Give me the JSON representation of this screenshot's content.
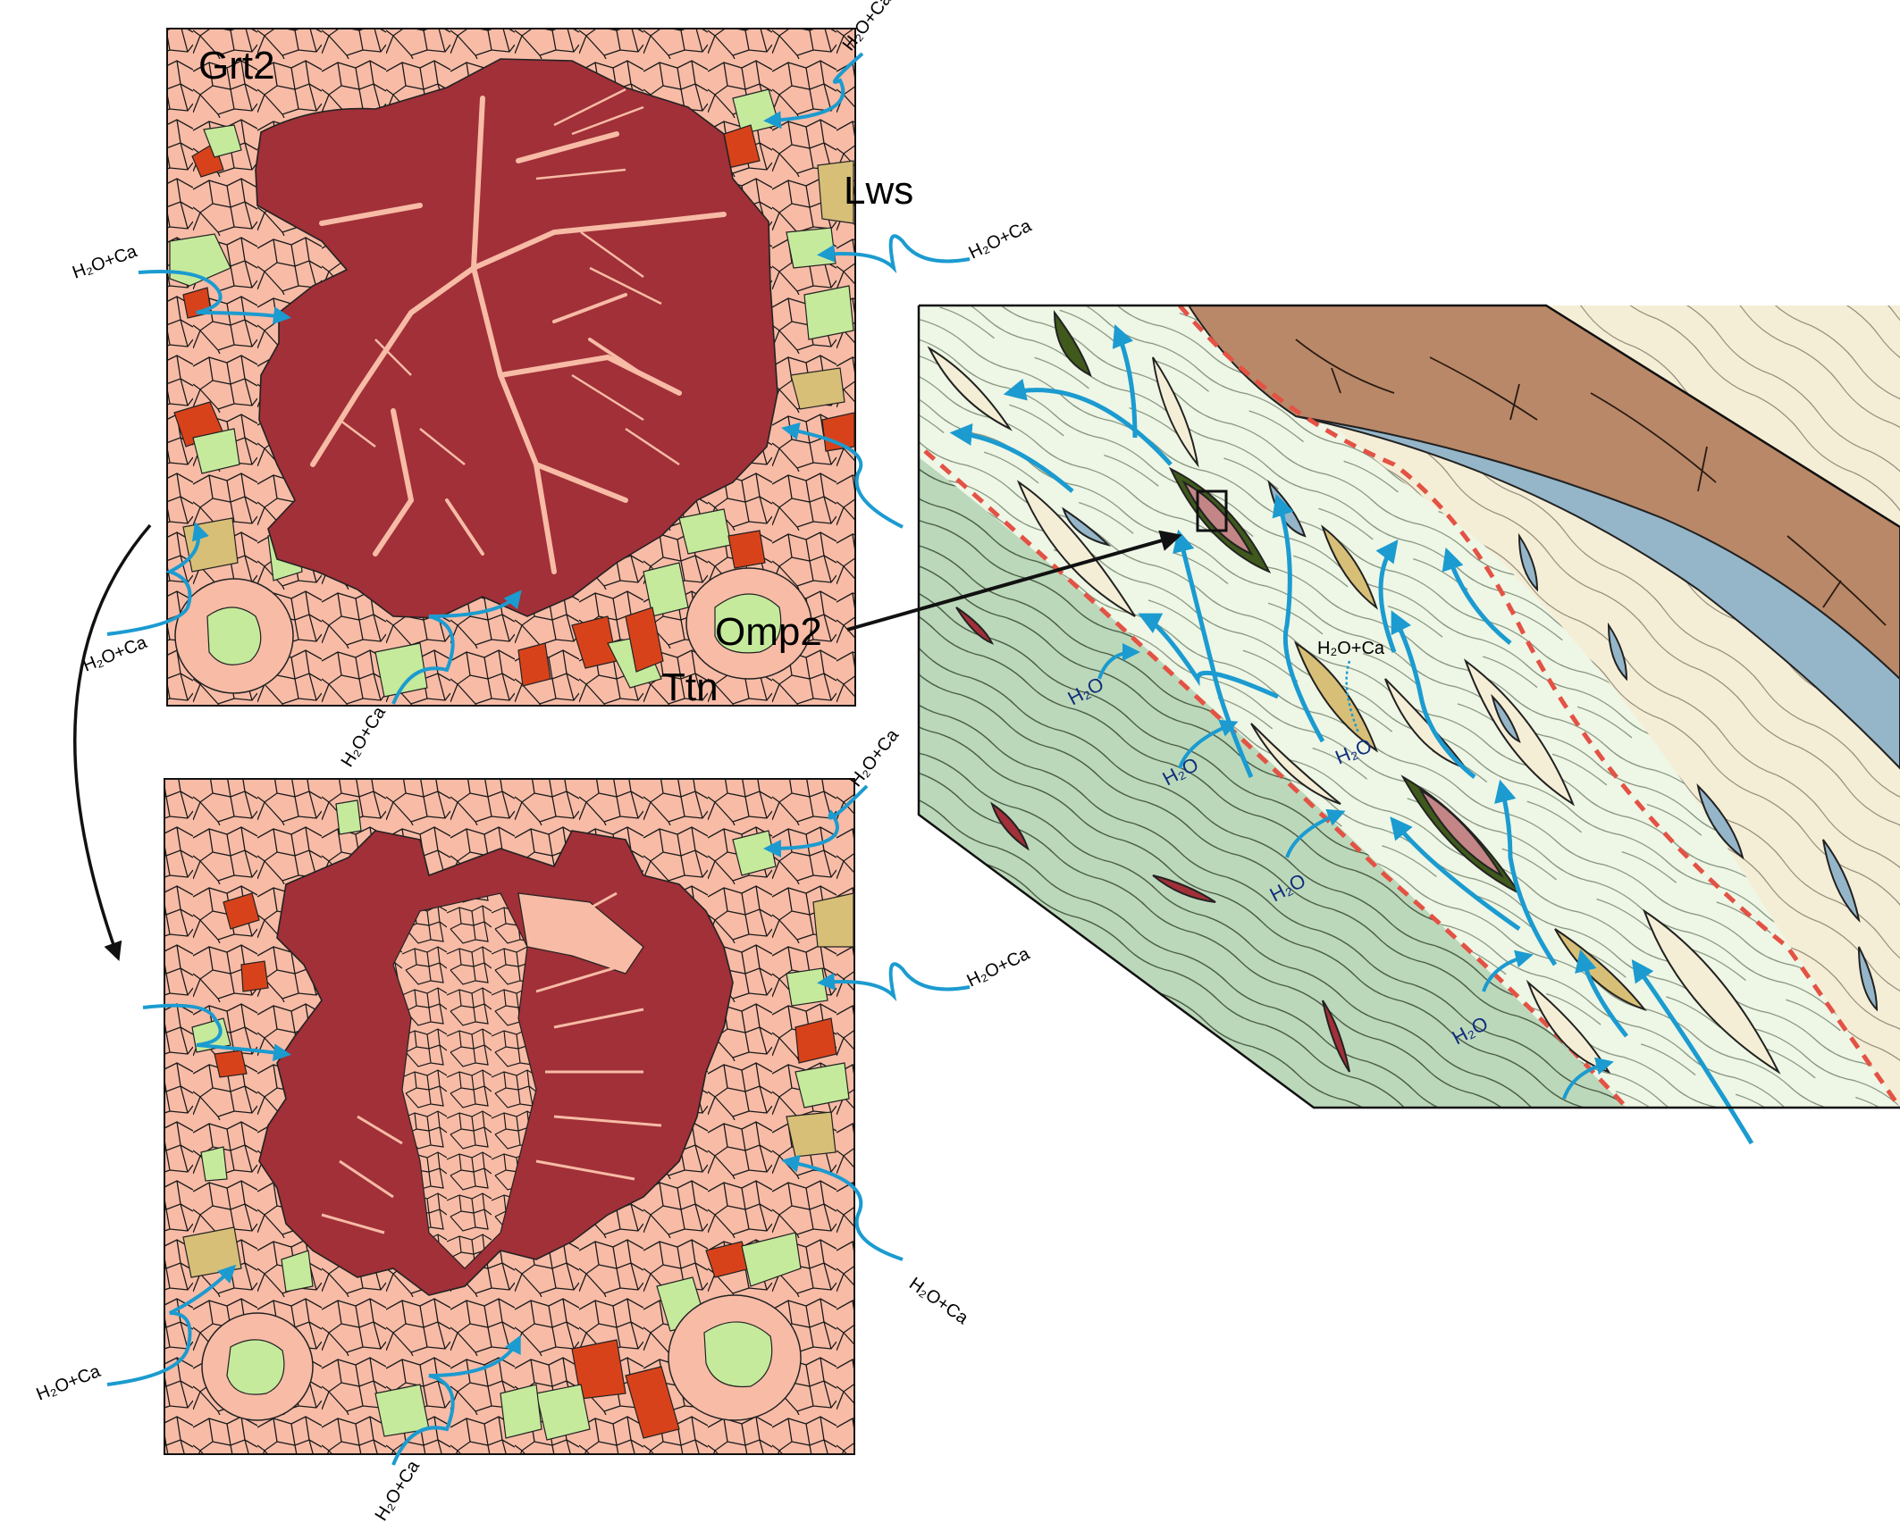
{
  "labels": {
    "grt2": "Grt2",
    "lws": "Lws",
    "omp2": "Omp2",
    "ttn": "Ttn",
    "fluid_ca": "H₂O+Ca",
    "fluid": "H₂O"
  },
  "colors": {
    "garnet_core": "#a13038",
    "garnet_rim": "#f7bba6",
    "omphacite": "#c5ea9c",
    "titanite": "#d8421a",
    "lawsonite": "#d8bf77",
    "fluid_arrow": "#1b9bd0",
    "shear_zone": "#e35244",
    "mantle_green": "#bcd8ba",
    "matrix_light": "#eef6e6",
    "cream": "#f5eed6",
    "brown_wedge": "#b98868",
    "blue_layer": "#95b6c9"
  },
  "icons": [
    "flow-arrow-icon",
    "curved-arrow-icon",
    "pointer-arrow-icon"
  ]
}
